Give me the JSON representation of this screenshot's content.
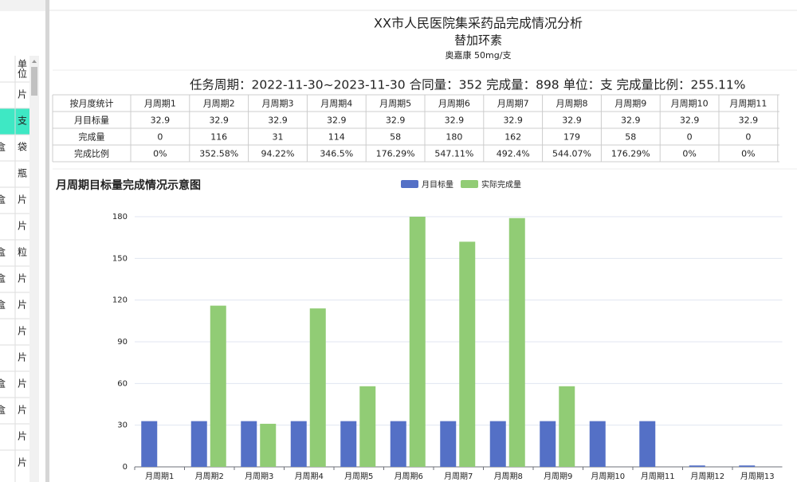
{
  "sidebar": {
    "header": "单位",
    "rows": [
      {
        "unit": "片"
      },
      {
        "unit": "支"
      },
      {
        "prefix": "盒",
        "unit": "袋"
      },
      {
        "unit": "瓶"
      },
      {
        "prefix": "盒",
        "unit": "片"
      },
      {
        "unit": "片"
      },
      {
        "prefix": "盒",
        "unit": "粒"
      },
      {
        "prefix": "盒",
        "unit": "片"
      },
      {
        "prefix": "盒",
        "unit": "片"
      },
      {
        "unit": "片"
      },
      {
        "unit": "片"
      },
      {
        "prefix": "盒",
        "unit": "片"
      },
      {
        "prefix": "盒",
        "unit": "片"
      },
      {
        "unit": "片"
      },
      {
        "unit": "片"
      }
    ]
  },
  "header": {
    "title": "XX市人民医院集采药品完成情况分析",
    "drug": "替加环素",
    "spec": "奥嘉康 50mg/支",
    "summary": "任务周期：2022-11-30~2023-11-30 合同量：352 完成量：898 单位：支 完成量比例：255.11%"
  },
  "table": {
    "header": [
      "按月度统计",
      "月周期1",
      "月周期2",
      "月周期3",
      "月周期4",
      "月周期5",
      "月周期6",
      "月周期7",
      "月周期8",
      "月周期9",
      "月周期10",
      "月周期11"
    ],
    "rows": [
      [
        "月目标量",
        "32.9",
        "32.9",
        "32.9",
        "32.9",
        "32.9",
        "32.9",
        "32.9",
        "32.9",
        "32.9",
        "32.9",
        "32.9"
      ],
      [
        "完成量",
        "0",
        "116",
        "31",
        "114",
        "58",
        "180",
        "162",
        "179",
        "58",
        "0",
        "0"
      ],
      [
        "完成比例",
        "0%",
        "352.58%",
        "94.22%",
        "346.5%",
        "176.29%",
        "547.11%",
        "492.4%",
        "544.07%",
        "176.29%",
        "0%",
        "0%"
      ]
    ]
  },
  "chart_data": {
    "type": "bar",
    "title": "月周期目标量完成情况示意图",
    "categories": [
      "月周期1",
      "月周期2",
      "月周期3",
      "月周期4",
      "月周期5",
      "月周期6",
      "月周期7",
      "月周期8",
      "月周期9",
      "月周期10",
      "月周期11",
      "月周期12",
      "月周期13"
    ],
    "series": [
      {
        "name": "月目标量",
        "color": "#5470c6",
        "values": [
          32.9,
          32.9,
          32.9,
          32.9,
          32.9,
          32.9,
          32.9,
          32.9,
          32.9,
          32.9,
          32.9,
          1,
          1
        ]
      },
      {
        "name": "实际完成量",
        "color": "#91cc75",
        "values": [
          0,
          116,
          31,
          114,
          58,
          180,
          162,
          179,
          58,
          0,
          0,
          0,
          0
        ]
      }
    ],
    "ylim": [
      0,
      180
    ],
    "yticks": [
      0,
      30,
      60,
      90,
      120,
      150,
      180
    ],
    "grid": true
  }
}
